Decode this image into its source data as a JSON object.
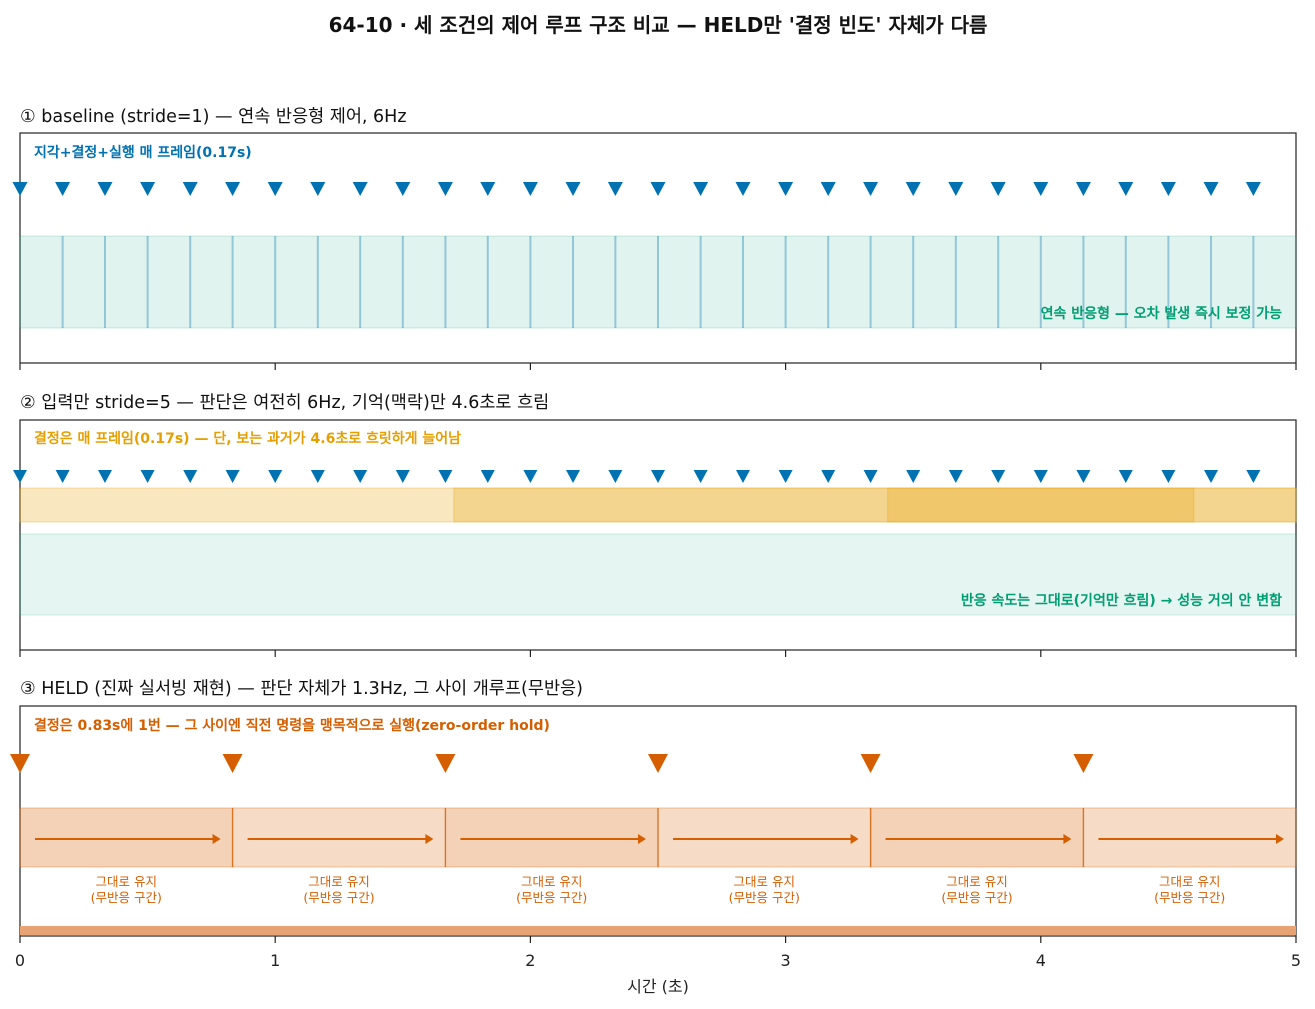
{
  "title": "64-10 · 세 조건의 제어 루프 구조 비교 — HELD만 '결정 빈도' 자체가 다름",
  "colors": {
    "blue": "#0072B2",
    "green": "#009E73",
    "yellow": "#E69F00",
    "orange": "#D55E00"
  },
  "chart_data": [
    {
      "type": "timeline",
      "title": "① baseline (stride=1) — 연속 반응형 제어, 6Hz",
      "annotation_top": "지각+결정+실행 매 프레임(0.17s)",
      "annotation_bottom": "연속 반응형 — 오차 발생 즉시 보정 가능",
      "xlim": [
        0,
        5
      ],
      "decision_interval_s": 0.17,
      "decision_times": [
        0,
        0.167,
        0.333,
        0.5,
        0.667,
        0.833,
        1.0,
        1.167,
        1.333,
        1.5,
        1.667,
        1.833,
        2.0,
        2.167,
        2.333,
        2.5,
        2.667,
        2.833,
        3.0,
        3.167,
        3.333,
        3.5,
        3.667,
        3.833,
        4.0,
        4.167,
        4.333,
        4.5,
        4.667,
        4.833
      ]
    },
    {
      "type": "timeline",
      "title": "② 입력만 stride=5 — 판단은 여전히 6Hz, 기억(맥락)만 4.6초로 흐림",
      "annotation_top": "결정은 매 프레임(0.17s) — 단, 보는 과거가 4.6초로 흐릿하게 늘어남",
      "annotation_bottom": "반응 속도는 그대로(기억만 흐림) → 성능 거의 안 변함",
      "xlim": [
        0,
        5
      ],
      "decision_interval_s": 0.17,
      "decision_times": [
        0,
        0.167,
        0.333,
        0.5,
        0.667,
        0.833,
        1.0,
        1.167,
        1.333,
        1.5,
        1.667,
        1.833,
        2.0,
        2.167,
        2.333,
        2.5,
        2.667,
        2.833,
        3.0,
        3.167,
        3.333,
        3.5,
        3.667,
        3.833,
        4.0,
        4.167,
        4.333,
        4.5,
        4.667,
        4.833
      ],
      "memory_context_windows": [
        {
          "start": 0,
          "end": 5
        },
        {
          "start": 1.7,
          "end": 5
        },
        {
          "start": 3.4,
          "end": 4.6
        }
      ]
    },
    {
      "type": "timeline",
      "title": "③ HELD (진짜 실서빙 재현) — 판단 자체가 1.3Hz, 그 사이 개루프(무반응)",
      "annotation_top": "결정은 0.83s에 1번 — 그 사이엔 직전 명령을 맹목적으로 실행(zero-order hold)",
      "xlim": [
        0,
        5
      ],
      "decision_interval_s": 0.83,
      "decision_times": [
        0,
        0.833,
        1.667,
        2.5,
        3.333,
        4.167
      ],
      "hold_segments": [
        {
          "start": 0,
          "end": 0.833,
          "label_line1": "그대로 유지",
          "label_line2": "(무반응 구간)"
        },
        {
          "start": 0.833,
          "end": 1.667,
          "label_line1": "그대로 유지",
          "label_line2": "(무반응 구간)"
        },
        {
          "start": 1.667,
          "end": 2.5,
          "label_line1": "그대로 유지",
          "label_line2": "(무반응 구간)"
        },
        {
          "start": 2.5,
          "end": 3.333,
          "label_line1": "그대로 유지",
          "label_line2": "(무반응 구간)"
        },
        {
          "start": 3.333,
          "end": 4.167,
          "label_line1": "그대로 유지",
          "label_line2": "(무반응 구간)"
        },
        {
          "start": 4.167,
          "end": 5,
          "label_line1": "그대로 유지",
          "label_line2": "(무반응 구간)"
        }
      ]
    }
  ],
  "x_axis": {
    "label": "시간 (초)",
    "ticks": [
      "0",
      "1",
      "2",
      "3",
      "4",
      "5"
    ]
  }
}
